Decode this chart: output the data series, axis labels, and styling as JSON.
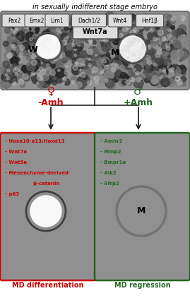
{
  "title": "in sexually indifferent stage embryo",
  "top_genes": [
    "Pax2",
    "Emx2",
    "Lim1",
    "Dach1/2",
    "Wnt4",
    "Hnf1β"
  ],
  "center_label": "Wnt7a",
  "W_label": "W",
  "M_label": "M",
  "female_symbol": "♀",
  "male_symbol": "♂",
  "female_label": "-Amh",
  "male_label": "+Amh",
  "female_genes": [
    "- Hoxa10-a13;Hoxd13",
    "- Wnt7a",
    "- Wnt5a",
    "- Mesenchyme-derived",
    "                β-catenin",
    "- p63"
  ],
  "male_genes": [
    "- Amhr2",
    "- Mmp2",
    "- Bmpr1a",
    "- Alk2",
    "- Sfrp2"
  ],
  "female_footer": "MD differentiation",
  "male_footer": "MD regression",
  "female_color": "#cc0000",
  "male_color": "#226622",
  "arrow_color": "#222222",
  "fig_w": 2.69,
  "fig_h": 4.29,
  "dpi": 100
}
